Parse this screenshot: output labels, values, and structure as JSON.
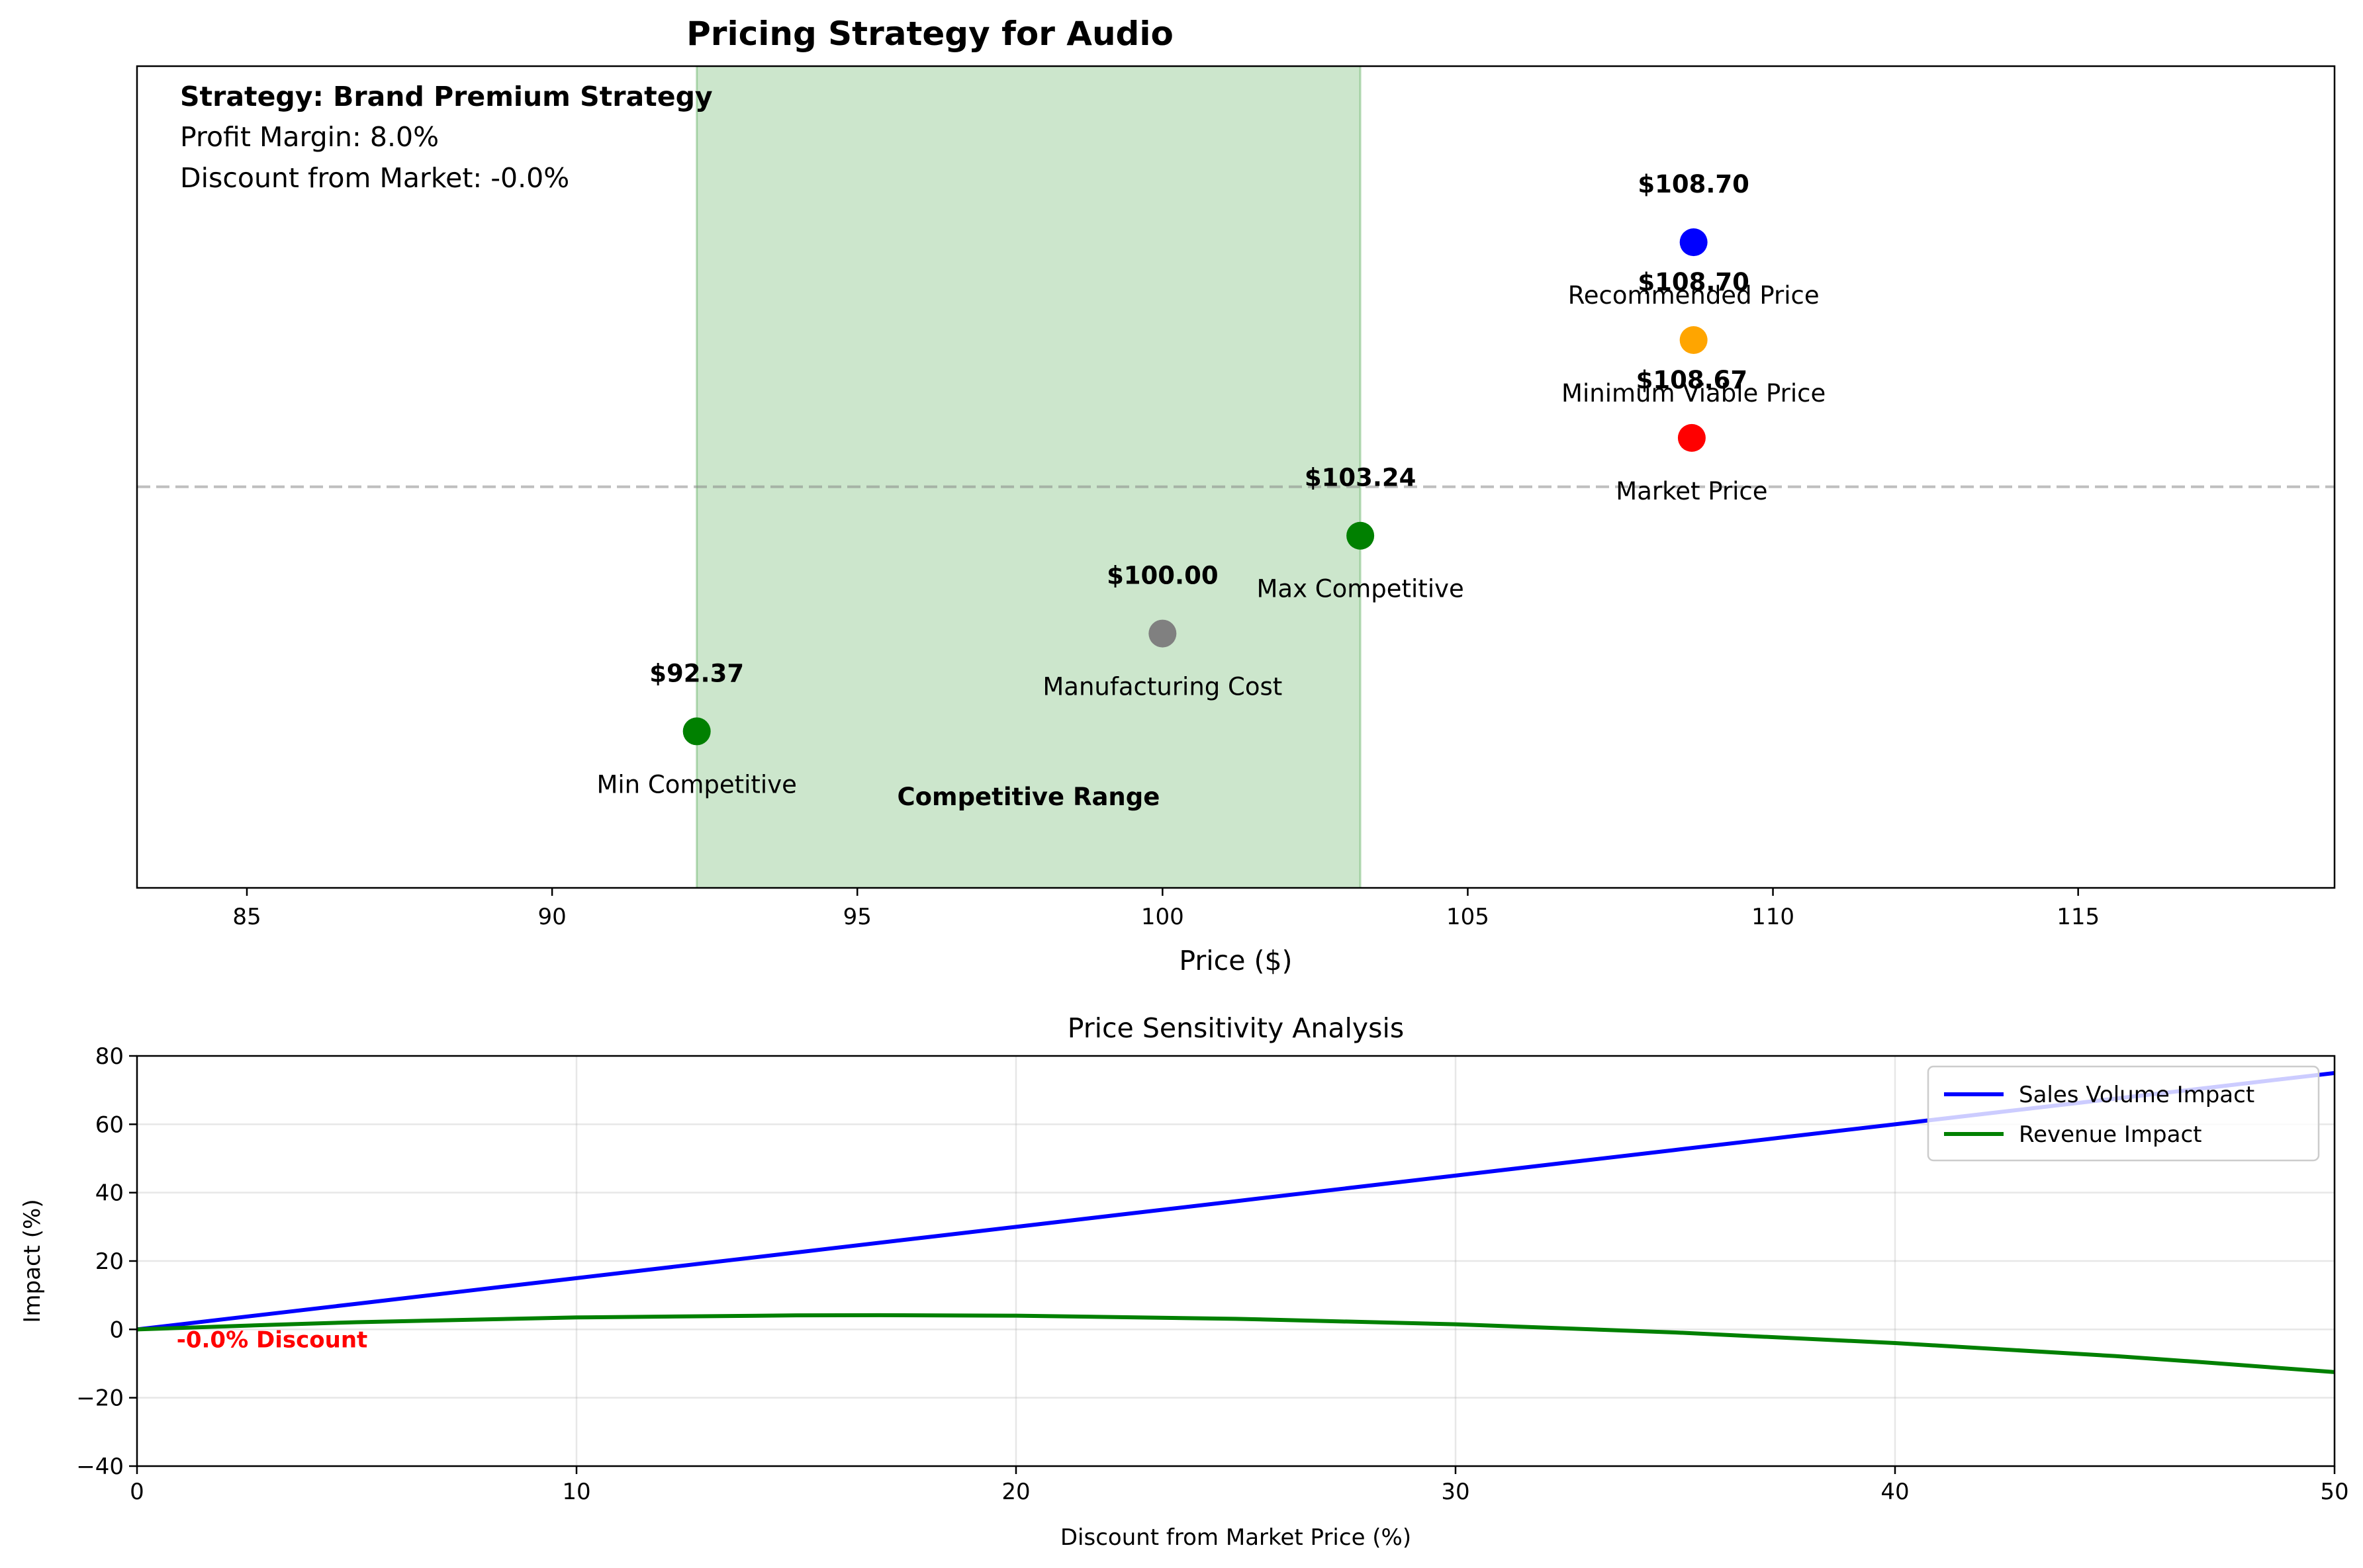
{
  "colors": {
    "recommended": "#0000ff",
    "minimum_viable": "#ffa500",
    "market": "#ff0000",
    "competitive": "#008000",
    "cost": "#808080",
    "range_fill": "#008000",
    "sales_line": "#0000ff",
    "revenue_line": "#008000",
    "discount_text": "#ff0000"
  },
  "chart_data": [
    {
      "type": "scatter",
      "title": "Pricing Strategy for Audio",
      "xlabel": "Price ($)",
      "ylabel": "",
      "xlim": [
        83.2,
        119.2
      ],
      "xticks": [
        "85",
        "90",
        "95",
        "100",
        "105",
        "110",
        "115"
      ],
      "xtick_values": [
        85,
        90,
        95,
        100,
        105,
        110,
        115
      ],
      "grid": false,
      "info": {
        "strategy": "Strategy: Brand Premium Strategy",
        "margin": "Profit Margin: 8.0%",
        "discount": "Discount from Market: -0.0%"
      },
      "range": {
        "label": "Competitive Range",
        "x_start": 92.37,
        "x_end": 103.24
      },
      "points": [
        {
          "name": "Min Competitive",
          "value": 92.37,
          "price_label": "$92.37",
          "level": -2.5,
          "color": "#008000"
        },
        {
          "name": "Manufacturing Cost",
          "value": 100.0,
          "price_label": "$100.00",
          "level": -1.5,
          "color": "#808080"
        },
        {
          "name": "Max Competitive",
          "value": 103.24,
          "price_label": "$103.24",
          "level": -0.5,
          "color": "#008000"
        },
        {
          "name": "Market Price",
          "value": 108.67,
          "price_label": "$108.67",
          "level": 0.5,
          "color": "#ff0000"
        },
        {
          "name": "Minimum Viable Price",
          "value": 108.7,
          "price_label": "$108.70",
          "level": 1.5,
          "color": "#ffa500"
        },
        {
          "name": "Recommended Price",
          "value": 108.7,
          "price_label": "$108.70",
          "level": 2.5,
          "color": "#0000ff"
        }
      ],
      "ylim": [
        -4.1,
        4.3
      ],
      "reference_line_y": 0
    },
    {
      "type": "line",
      "title": "Price Sensitivity Analysis",
      "xlabel": "Discount from Market Price (%)",
      "ylabel": "Impact (%)",
      "xlim": [
        0,
        50
      ],
      "ylim": [
        -40,
        80
      ],
      "xticks": [
        "0",
        "10",
        "20",
        "30",
        "40",
        "50"
      ],
      "xtick_values": [
        0,
        10,
        20,
        30,
        40,
        50
      ],
      "yticks": [
        "−40",
        "−20",
        "0",
        "20",
        "40",
        "60",
        "80"
      ],
      "ytick_values": [
        -40,
        -20,
        0,
        20,
        40,
        60,
        80
      ],
      "grid": true,
      "legend_position": "top-right",
      "x": [
        0,
        5,
        10,
        15,
        20,
        25,
        30,
        35,
        40,
        45,
        50
      ],
      "series": [
        {
          "name": "Sales Volume Impact",
          "values": [
            0,
            7.5,
            15,
            22.5,
            30,
            37.5,
            45,
            52.5,
            60,
            67.5,
            75
          ],
          "color": "#0000ff"
        },
        {
          "name": "Revenue Impact",
          "values": [
            0,
            2.1,
            3.5,
            4.1,
            4.0,
            3.1,
            1.5,
            -0.9,
            -4.0,
            -7.8,
            -12.5
          ],
          "color": "#008000"
        }
      ],
      "annotation": {
        "text": "-0.0% Discount",
        "x": 0.9,
        "y": -2.5
      }
    }
  ]
}
